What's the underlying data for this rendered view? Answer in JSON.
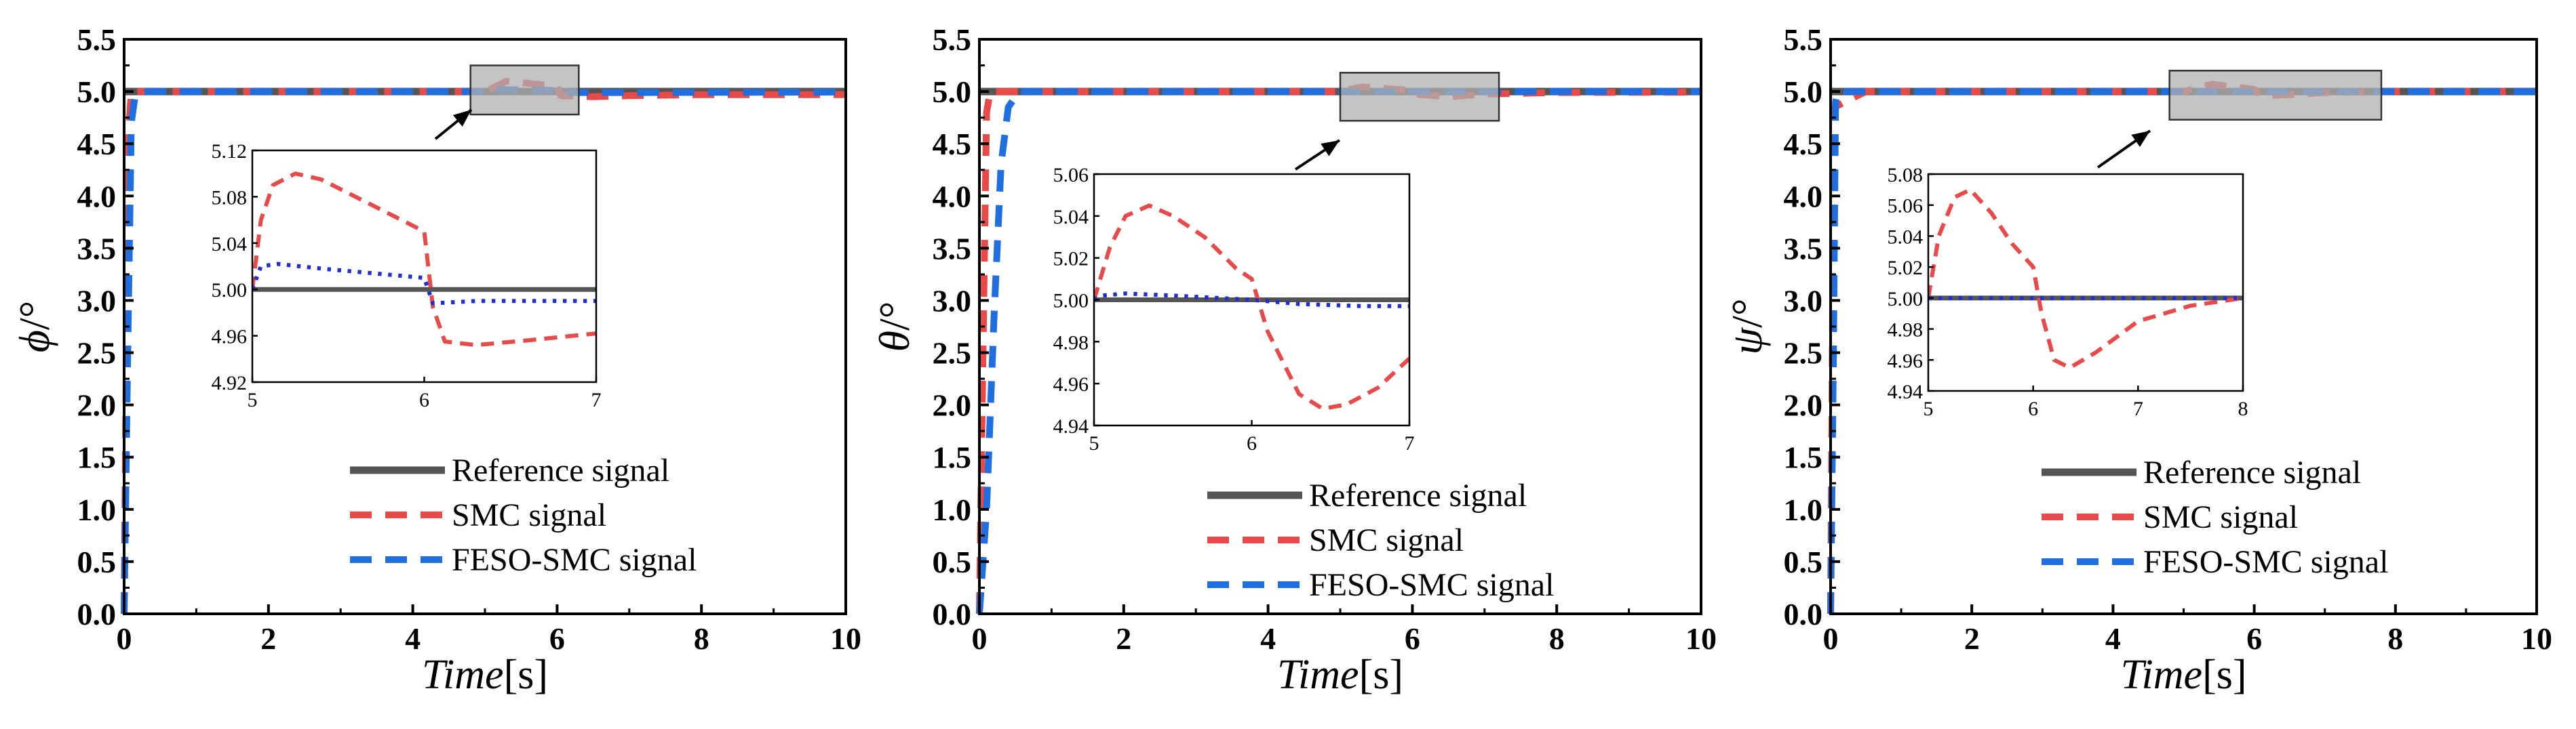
{
  "chart_data": [
    {
      "type": "line",
      "ylabel_symbol": "ϕ",
      "ylabel_unit": "/°",
      "xlabel_text": "Time",
      "xlabel_unit": "[s]",
      "xlim": [
        0,
        10
      ],
      "ylim": [
        0,
        5.5
      ],
      "xticks": [
        "0",
        "2",
        "4",
        "6",
        "8",
        "10"
      ],
      "yticks": [
        "0.0",
        "0.5",
        "1.0",
        "1.5",
        "2.0",
        "2.5",
        "3.0",
        "3.5",
        "4.0",
        "4.5",
        "5.0",
        "5.5"
      ],
      "zoom_box": {
        "x": [
          4.8,
          6.3
        ],
        "y": [
          4.78,
          5.25
        ]
      },
      "legend": [
        "Reference signal",
        "SMC signal",
        "FESO-SMC signal"
      ],
      "series": [
        {
          "name": "Reference signal",
          "color": "#555555",
          "style": "solid",
          "points": [
            [
              0,
              5.0
            ],
            [
              10,
              5.0
            ]
          ]
        },
        {
          "name": "SMC signal",
          "color": "#e84a4a",
          "style": "dash",
          "points": [
            [
              0,
              0
            ],
            [
              0.03,
              2.5
            ],
            [
              0.06,
              4.6
            ],
            [
              0.1,
              5.0
            ],
            [
              1,
              5.0
            ],
            [
              5,
              5.0
            ],
            [
              5.3,
              5.1
            ],
            [
              6,
              5.05
            ],
            [
              6.05,
              4.96
            ],
            [
              6.5,
              4.95
            ],
            [
              7,
              4.96
            ],
            [
              8,
              4.97
            ],
            [
              10,
              4.97
            ]
          ]
        },
        {
          "name": "FESO-SMC signal",
          "color": "#1f6fe0",
          "style": "dash",
          "points": [
            [
              0,
              0
            ],
            [
              0.05,
              2.5
            ],
            [
              0.1,
              4.7
            ],
            [
              0.15,
              4.95
            ],
            [
              0.25,
              5.0
            ],
            [
              5,
              5.0
            ],
            [
              5.1,
              5.02
            ],
            [
              6,
              5.01
            ],
            [
              6.05,
              4.99
            ],
            [
              7,
              4.99
            ],
            [
              10,
              4.995
            ]
          ]
        }
      ],
      "inset": {
        "xlim": [
          5,
          7
        ],
        "ylim": [
          4.92,
          5.12
        ],
        "xticks": [
          "5",
          "6",
          "7"
        ],
        "yticks": [
          "4.92",
          "4.96",
          "5.00",
          "5.04",
          "5.08",
          "5.12"
        ],
        "series": [
          {
            "name": "Reference signal",
            "color": "#555555",
            "style": "solid",
            "points": [
              [
                5,
                5.0
              ],
              [
                7,
                5.0
              ]
            ]
          },
          {
            "name": "SMC signal",
            "color": "#e84a4a",
            "style": "dash",
            "points": [
              [
                5.0,
                5.0
              ],
              [
                5.05,
                5.06
              ],
              [
                5.12,
                5.09
              ],
              [
                5.25,
                5.1
              ],
              [
                5.4,
                5.095
              ],
              [
                5.6,
                5.08
              ],
              [
                5.8,
                5.065
              ],
              [
                6.0,
                5.05
              ],
              [
                6.05,
                4.985
              ],
              [
                6.12,
                4.955
              ],
              [
                6.3,
                4.952
              ],
              [
                6.6,
                4.956
              ],
              [
                7.0,
                4.962
              ]
            ]
          },
          {
            "name": "FESO-SMC signal",
            "color": "#1f2fd0",
            "style": "dot",
            "points": [
              [
                5.0,
                5.0
              ],
              [
                5.05,
                5.02
              ],
              [
                5.15,
                5.022
              ],
              [
                5.4,
                5.018
              ],
              [
                5.7,
                5.014
              ],
              [
                6.0,
                5.01
              ],
              [
                6.05,
                4.988
              ],
              [
                6.3,
                4.99
              ],
              [
                7.0,
                4.99
              ]
            ]
          }
        ]
      }
    },
    {
      "type": "line",
      "ylabel_symbol": "θ",
      "ylabel_unit": "/°",
      "xlabel_text": "Time",
      "xlabel_unit": "[s]",
      "xlim": [
        0,
        10
      ],
      "ylim": [
        0,
        5.5
      ],
      "xticks": [
        "0",
        "2",
        "4",
        "6",
        "8",
        "10"
      ],
      "yticks": [
        "0.0",
        "0.5",
        "1.0",
        "1.5",
        "2.0",
        "2.5",
        "3.0",
        "3.5",
        "4.0",
        "4.5",
        "5.0",
        "5.5"
      ],
      "zoom_box": {
        "x": [
          5.0,
          7.2
        ],
        "y": [
          4.72,
          5.18
        ]
      },
      "legend": [
        "Reference signal",
        "SMC signal",
        "FESO-SMC signal"
      ],
      "series": [
        {
          "name": "Reference signal",
          "color": "#555555",
          "style": "solid",
          "points": [
            [
              0,
              5.0
            ],
            [
              10,
              5.0
            ]
          ]
        },
        {
          "name": "SMC signal",
          "color": "#e84a4a",
          "style": "dash",
          "points": [
            [
              0,
              0
            ],
            [
              0.05,
              2.5
            ],
            [
              0.1,
              4.8
            ],
            [
              0.15,
              5.0
            ],
            [
              5,
              5.0
            ],
            [
              5.3,
              5.045
            ],
            [
              6,
              5.01
            ],
            [
              6.1,
              4.97
            ],
            [
              6.5,
              4.95
            ],
            [
              7,
              4.975
            ],
            [
              8,
              4.99
            ],
            [
              10,
              4.995
            ]
          ]
        },
        {
          "name": "FESO-SMC signal",
          "color": "#1f6fe0",
          "style": "dash",
          "points": [
            [
              0,
              0
            ],
            [
              0.1,
              1.0
            ],
            [
              0.2,
              2.8
            ],
            [
              0.3,
              4.3
            ],
            [
              0.4,
              4.85
            ],
            [
              0.55,
              5.0
            ],
            [
              10,
              5.0
            ]
          ]
        }
      ],
      "inset": {
        "xlim": [
          5,
          7
        ],
        "ylim": [
          4.94,
          5.06
        ],
        "xticks": [
          "5",
          "6",
          "7"
        ],
        "yticks": [
          "4.94",
          "4.96",
          "4.98",
          "5.00",
          "5.02",
          "5.04",
          "5.06"
        ],
        "series": [
          {
            "name": "Reference signal",
            "color": "#555555",
            "style": "solid",
            "points": [
              [
                5,
                5.0
              ],
              [
                7,
                5.0
              ]
            ]
          },
          {
            "name": "SMC signal",
            "color": "#e84a4a",
            "style": "dash",
            "points": [
              [
                5.0,
                5.0
              ],
              [
                5.1,
                5.025
              ],
              [
                5.2,
                5.04
              ],
              [
                5.35,
                5.045
              ],
              [
                5.5,
                5.04
              ],
              [
                5.7,
                5.03
              ],
              [
                5.9,
                5.015
              ],
              [
                6.0,
                5.01
              ],
              [
                6.1,
                4.985
              ],
              [
                6.3,
                4.955
              ],
              [
                6.45,
                4.948
              ],
              [
                6.6,
                4.95
              ],
              [
                6.8,
                4.958
              ],
              [
                7.0,
                4.972
              ]
            ]
          },
          {
            "name": "FESO-SMC signal",
            "color": "#1f2fd0",
            "style": "dot",
            "points": [
              [
                5.0,
                5.0
              ],
              [
                5.05,
                5.002
              ],
              [
                5.2,
                5.003
              ],
              [
                5.5,
                5.002
              ],
              [
                6.0,
                5.0
              ],
              [
                6.3,
                4.998
              ],
              [
                6.7,
                4.997
              ],
              [
                7.0,
                4.997
              ]
            ]
          }
        ]
      }
    },
    {
      "type": "line",
      "ylabel_symbol": "ψ",
      "ylabel_unit": "/°",
      "xlabel_text": "Time",
      "xlabel_unit": "[s]",
      "xlim": [
        0,
        10
      ],
      "ylim": [
        0,
        5.5
      ],
      "xticks": [
        "0",
        "2",
        "4",
        "6",
        "8",
        "10"
      ],
      "yticks": [
        "0.0",
        "0.5",
        "1.0",
        "1.5",
        "2.0",
        "2.5",
        "3.0",
        "3.5",
        "4.0",
        "4.5",
        "5.0",
        "5.5"
      ],
      "zoom_box": {
        "x": [
          4.8,
          7.8
        ],
        "y": [
          4.73,
          5.2
        ]
      },
      "legend": [
        "Reference signal",
        "SMC signal",
        "FESO-SMC signal"
      ],
      "series": [
        {
          "name": "Reference signal",
          "color": "#555555",
          "style": "solid",
          "points": [
            [
              0,
              5.0
            ],
            [
              10,
              5.0
            ]
          ]
        },
        {
          "name": "SMC signal",
          "color": "#e84a4a",
          "style": "dash",
          "points": [
            [
              0,
              0
            ],
            [
              0.03,
              3.0
            ],
            [
              0.06,
              4.85
            ],
            [
              0.2,
              4.9
            ],
            [
              0.5,
              5.0
            ],
            [
              5,
              5.0
            ],
            [
              5.4,
              5.07
            ],
            [
              6.0,
              5.02
            ],
            [
              6.1,
              4.96
            ],
            [
              6.5,
              4.97
            ],
            [
              7,
              4.99
            ],
            [
              8,
              5.0
            ],
            [
              10,
              5.0
            ]
          ]
        },
        {
          "name": "FESO-SMC signal",
          "color": "#1f6fe0",
          "style": "dash",
          "points": [
            [
              0,
              0
            ],
            [
              0.04,
              2.5
            ],
            [
              0.07,
              4.9
            ],
            [
              0.1,
              5.0
            ],
            [
              10,
              5.0
            ]
          ]
        }
      ],
      "inset": {
        "xlim": [
          5,
          8
        ],
        "ylim": [
          4.94,
          5.08
        ],
        "xticks": [
          "5",
          "6",
          "7",
          "8"
        ],
        "yticks": [
          "4.94",
          "4.96",
          "4.98",
          "5.00",
          "5.02",
          "5.04",
          "5.06",
          "5.08"
        ],
        "series": [
          {
            "name": "Reference signal",
            "color": "#555555",
            "style": "solid",
            "points": [
              [
                5,
                5.0
              ],
              [
                8,
                5.0
              ]
            ]
          },
          {
            "name": "SMC signal",
            "color": "#e84a4a",
            "style": "dash",
            "points": [
              [
                5.0,
                5.0
              ],
              [
                5.1,
                5.04
              ],
              [
                5.25,
                5.065
              ],
              [
                5.4,
                5.07
              ],
              [
                5.6,
                5.055
              ],
              [
                5.8,
                5.035
              ],
              [
                6.0,
                5.02
              ],
              [
                6.08,
                4.99
              ],
              [
                6.2,
                4.96
              ],
              [
                6.35,
                4.955
              ],
              [
                6.6,
                4.965
              ],
              [
                7.0,
                4.985
              ],
              [
                7.5,
                4.995
              ],
              [
                8.0,
                5.0
              ]
            ]
          },
          {
            "name": "FESO-SMC signal",
            "color": "#1f2fd0",
            "style": "dot",
            "points": [
              [
                5.0,
                5.0
              ],
              [
                8.0,
                5.0
              ]
            ]
          }
        ]
      }
    }
  ]
}
